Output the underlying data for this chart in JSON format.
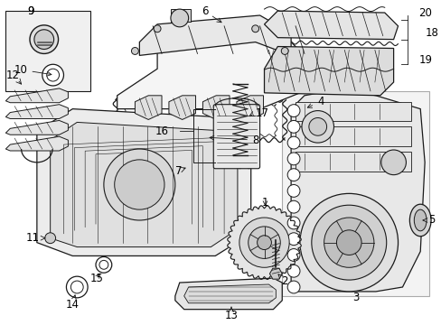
{
  "bg_color": "#ffffff",
  "line_color": "#1a1a1a",
  "label_color": "#000000",
  "fig_width": 4.89,
  "fig_height": 3.6,
  "dpi": 100,
  "font_size": 8.5
}
